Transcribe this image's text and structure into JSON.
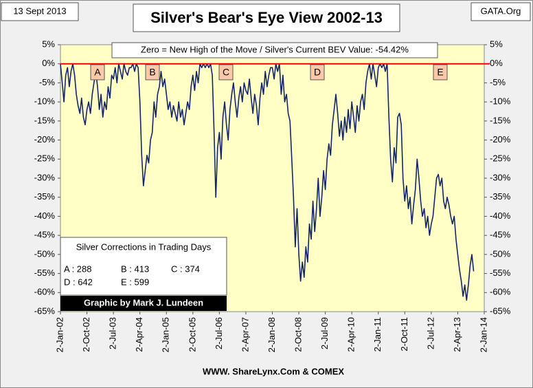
{
  "chart_data": {
    "type": "line",
    "title": "Silver's Bear's Eye View 2002-13",
    "date_label": "13 Sept 2013",
    "source_label": "GATA.Org",
    "annotation": "Zero = New High of the Move / Silver's Current BEV Value: -54.42%",
    "footer": "WWW. ShareLynx.Com & COMEX",
    "credit": "Graphic by Mark J. Lundeen",
    "markers": [
      "A",
      "B",
      "C",
      "D",
      "E"
    ],
    "corrections_title": "Silver Corrections in Trading Days",
    "corrections": [
      [
        "A : 288",
        "B : 413",
        "C : 374"
      ],
      [
        "D : 642",
        "E : 599"
      ]
    ],
    "color": "#14246a",
    "zero_line": "#ff0000",
    "plot_background": "#ffffc6",
    "grid": false,
    "xlim": [
      2002,
      2014
    ],
    "xticks": [
      {
        "value": 2002,
        "label": "2-Jan-02"
      },
      {
        "value": 2002.75,
        "label": "2-Oct-02"
      },
      {
        "value": 2003.5,
        "label": "2-Jul-03"
      },
      {
        "value": 2004.25,
        "label": "2-Apr-04"
      },
      {
        "value": 2005,
        "label": "2-Jan-05"
      },
      {
        "value": 2005.75,
        "label": "2-Oct-05"
      },
      {
        "value": 2006.5,
        "label": "2-Jul-06"
      },
      {
        "value": 2007.25,
        "label": "2-Apr-07"
      },
      {
        "value": 2008,
        "label": "2-Jan-08"
      },
      {
        "value": 2008.75,
        "label": "2-Oct-08"
      },
      {
        "value": 2009.5,
        "label": "2-Jul-09"
      },
      {
        "value": 2010.25,
        "label": "2-Apr-10"
      },
      {
        "value": 2011,
        "label": "2-Jan-11"
      },
      {
        "value": 2011.75,
        "label": "2-Oct-11"
      },
      {
        "value": 2012.5,
        "label": "2-Jul-12"
      },
      {
        "value": 2013.25,
        "label": "2-Apr-13"
      },
      {
        "value": 2014,
        "label": "2-Jan-14"
      }
    ],
    "ylim": [
      -65,
      5
    ],
    "yticks": [
      {
        "value": 5,
        "label": "5%"
      },
      {
        "value": 0,
        "label": "0%"
      },
      {
        "value": -5,
        "label": "-5%"
      },
      {
        "value": -10,
        "label": "-10%"
      },
      {
        "value": -15,
        "label": "-15%"
      },
      {
        "value": -20,
        "label": "-20%"
      },
      {
        "value": -25,
        "label": "-25%"
      },
      {
        "value": -30,
        "label": "-30%"
      },
      {
        "value": -35,
        "label": "-35%"
      },
      {
        "value": -40,
        "label": "-40%"
      },
      {
        "value": -45,
        "label": "-45%"
      },
      {
        "value": -50,
        "label": "-50%"
      },
      {
        "value": -55,
        "label": "-55%"
      },
      {
        "value": -60,
        "label": "-60%"
      },
      {
        "value": -65,
        "label": "-65%"
      }
    ],
    "y2lim": [
      -65,
      5
    ],
    "y2ticks": [
      {
        "value": 5,
        "label": "5%"
      },
      {
        "value": 0,
        "label": "0%"
      },
      {
        "value": -5,
        "label": "-5%"
      },
      {
        "value": -10,
        "label": "-10%"
      },
      {
        "value": -15,
        "label": "-15%"
      },
      {
        "value": -20,
        "label": "-20%"
      },
      {
        "value": -25,
        "label": "-25%"
      },
      {
        "value": -30,
        "label": "-30%"
      },
      {
        "value": -35,
        "label": "-35%"
      },
      {
        "value": -40,
        "label": "-40%"
      },
      {
        "value": -45,
        "label": "-45%"
      },
      {
        "value": -50,
        "label": "-50%"
      },
      {
        "value": -55,
        "label": "-55%"
      },
      {
        "value": -60,
        "label": "-60%"
      },
      {
        "value": -65,
        "label": "-65%"
      }
    ],
    "x": [
      2002,
      2002.05,
      2002.1,
      2002.15,
      2002.2,
      2002.25,
      2002.3,
      2002.35,
      2002.4,
      2002.45,
      2002.5,
      2002.55,
      2002.6,
      2002.65,
      2002.7,
      2002.75,
      2002.8,
      2002.85,
      2002.9,
      2002.95,
      2003,
      2003.05,
      2003.1,
      2003.15,
      2003.2,
      2003.25,
      2003.3,
      2003.35,
      2003.4,
      2003.45,
      2003.5,
      2003.55,
      2003.6,
      2003.65,
      2003.7,
      2003.75,
      2003.8,
      2003.85,
      2003.9,
      2003.95,
      2004,
      2004.05,
      2004.1,
      2004.15,
      2004.2,
      2004.25,
      2004.3,
      2004.35,
      2004.4,
      2004.45,
      2004.5,
      2004.55,
      2004.6,
      2004.65,
      2004.7,
      2004.75,
      2004.8,
      2004.85,
      2004.9,
      2004.95,
      2005,
      2005.05,
      2005.1,
      2005.15,
      2005.2,
      2005.25,
      2005.3,
      2005.35,
      2005.4,
      2005.45,
      2005.5,
      2005.55,
      2005.6,
      2005.65,
      2005.7,
      2005.75,
      2005.8,
      2005.85,
      2005.9,
      2005.95,
      2006,
      2006.05,
      2006.1,
      2006.15,
      2006.2,
      2006.25,
      2006.3,
      2006.35,
      2006.4,
      2006.45,
      2006.5,
      2006.55,
      2006.6,
      2006.65,
      2006.7,
      2006.75,
      2006.8,
      2006.85,
      2006.9,
      2006.95,
      2007,
      2007.05,
      2007.1,
      2007.15,
      2007.2,
      2007.25,
      2007.3,
      2007.35,
      2007.4,
      2007.45,
      2007.5,
      2007.55,
      2007.6,
      2007.65,
      2007.7,
      2007.75,
      2007.8,
      2007.85,
      2007.9,
      2007.95,
      2008,
      2008.05,
      2008.1,
      2008.15,
      2008.2,
      2008.25,
      2008.3,
      2008.35,
      2008.4,
      2008.45,
      2008.5,
      2008.55,
      2008.6,
      2008.65,
      2008.7,
      2008.75,
      2008.8,
      2008.85,
      2008.9,
      2008.95,
      2009,
      2009.05,
      2009.1,
      2009.15,
      2009.2,
      2009.25,
      2009.3,
      2009.35,
      2009.4,
      2009.45,
      2009.5,
      2009.55,
      2009.6,
      2009.65,
      2009.7,
      2009.75,
      2009.8,
      2009.85,
      2009.9,
      2009.95,
      2010,
      2010.05,
      2010.1,
      2010.15,
      2010.2,
      2010.25,
      2010.3,
      2010.35,
      2010.4,
      2010.45,
      2010.5,
      2010.55,
      2010.6,
      2010.65,
      2010.7,
      2010.75,
      2010.8,
      2010.85,
      2010.9,
      2010.95,
      2011,
      2011.05,
      2011.1,
      2011.15,
      2011.2,
      2011.25,
      2011.3,
      2011.35,
      2011.4,
      2011.45,
      2011.5,
      2011.55,
      2011.6,
      2011.65,
      2011.7,
      2011.75,
      2011.8,
      2011.85,
      2011.9,
      2011.95,
      2012,
      2012.05,
      2012.1,
      2012.15,
      2012.2,
      2012.25,
      2012.3,
      2012.35,
      2012.4,
      2012.45,
      2012.5,
      2012.55,
      2012.6,
      2012.65,
      2012.7,
      2012.75,
      2012.8,
      2012.85,
      2012.9,
      2012.95,
      2013,
      2013.05,
      2013.1,
      2013.15,
      2013.2,
      2013.25,
      2013.3,
      2013.35,
      2013.4,
      2013.45,
      2013.5,
      2013.55,
      2013.6,
      2013.65,
      2013.7
    ],
    "values": [
      0,
      -5,
      -10,
      -3,
      -1,
      -6,
      -2,
      0,
      -3,
      -8,
      -11,
      -13,
      -9,
      -14,
      -16,
      -12,
      -10,
      -13,
      -8,
      -5,
      -2,
      -6,
      -12,
      -8,
      -14,
      -10,
      -12,
      -6,
      -9,
      -3,
      -4,
      -1,
      -5,
      0,
      -2,
      -4,
      0,
      -2,
      -3,
      -1,
      -1,
      0,
      -2,
      0,
      -1,
      -10,
      -24,
      -32,
      -28,
      -24,
      -26,
      -20,
      -18,
      -10,
      -14,
      -8,
      -6,
      -2,
      -6,
      -4,
      -8,
      -12,
      -10,
      -14,
      -11,
      -13,
      -15,
      -10,
      -14,
      -12,
      -16,
      -13,
      -10,
      -12,
      -6,
      -3,
      -7,
      -2,
      -5,
      0,
      -1,
      0,
      -1,
      0,
      -1,
      0,
      -3,
      -18,
      -35,
      -22,
      -18,
      -25,
      -14,
      -10,
      -16,
      -20,
      -12,
      -8,
      -5,
      -10,
      -14,
      -9,
      -6,
      -10,
      -5,
      -7,
      -8,
      -4,
      -9,
      -13,
      -8,
      -11,
      -16,
      -9,
      -5,
      -8,
      -2,
      -6,
      -3,
      -1,
      -1,
      -4,
      0,
      -2,
      0,
      -8,
      -3,
      -10,
      -8,
      -13,
      -15,
      -25,
      -35,
      -48,
      -38,
      -50,
      -57,
      -52,
      -56,
      -48,
      -52,
      -42,
      -46,
      -36,
      -44,
      -38,
      -30,
      -40,
      -35,
      -28,
      -33,
      -25,
      -21,
      -24,
      -16,
      -12,
      -8,
      -13,
      -19,
      -15,
      -20,
      -14,
      -18,
      -12,
      -17,
      -10,
      -14,
      -18,
      -11,
      -15,
      -10,
      -8,
      -12,
      -5,
      -2,
      0,
      -4,
      0,
      -3,
      -6,
      -1,
      0,
      -1,
      0,
      -2,
      0,
      -14,
      -25,
      -31,
      -22,
      -26,
      -14,
      -13,
      -16,
      -30,
      -36,
      -32,
      -38,
      -35,
      -42,
      -37,
      -33,
      -25,
      -30,
      -36,
      -40,
      -38,
      -43,
      -40,
      -45,
      -42,
      -40,
      -35,
      -30,
      -29,
      -32,
      -30,
      -36,
      -38,
      -35,
      -37,
      -40,
      -42,
      -40,
      -46,
      -50,
      -54,
      -57,
      -61,
      -58,
      -62,
      -58,
      -53,
      -50,
      -54.42
    ]
  }
}
